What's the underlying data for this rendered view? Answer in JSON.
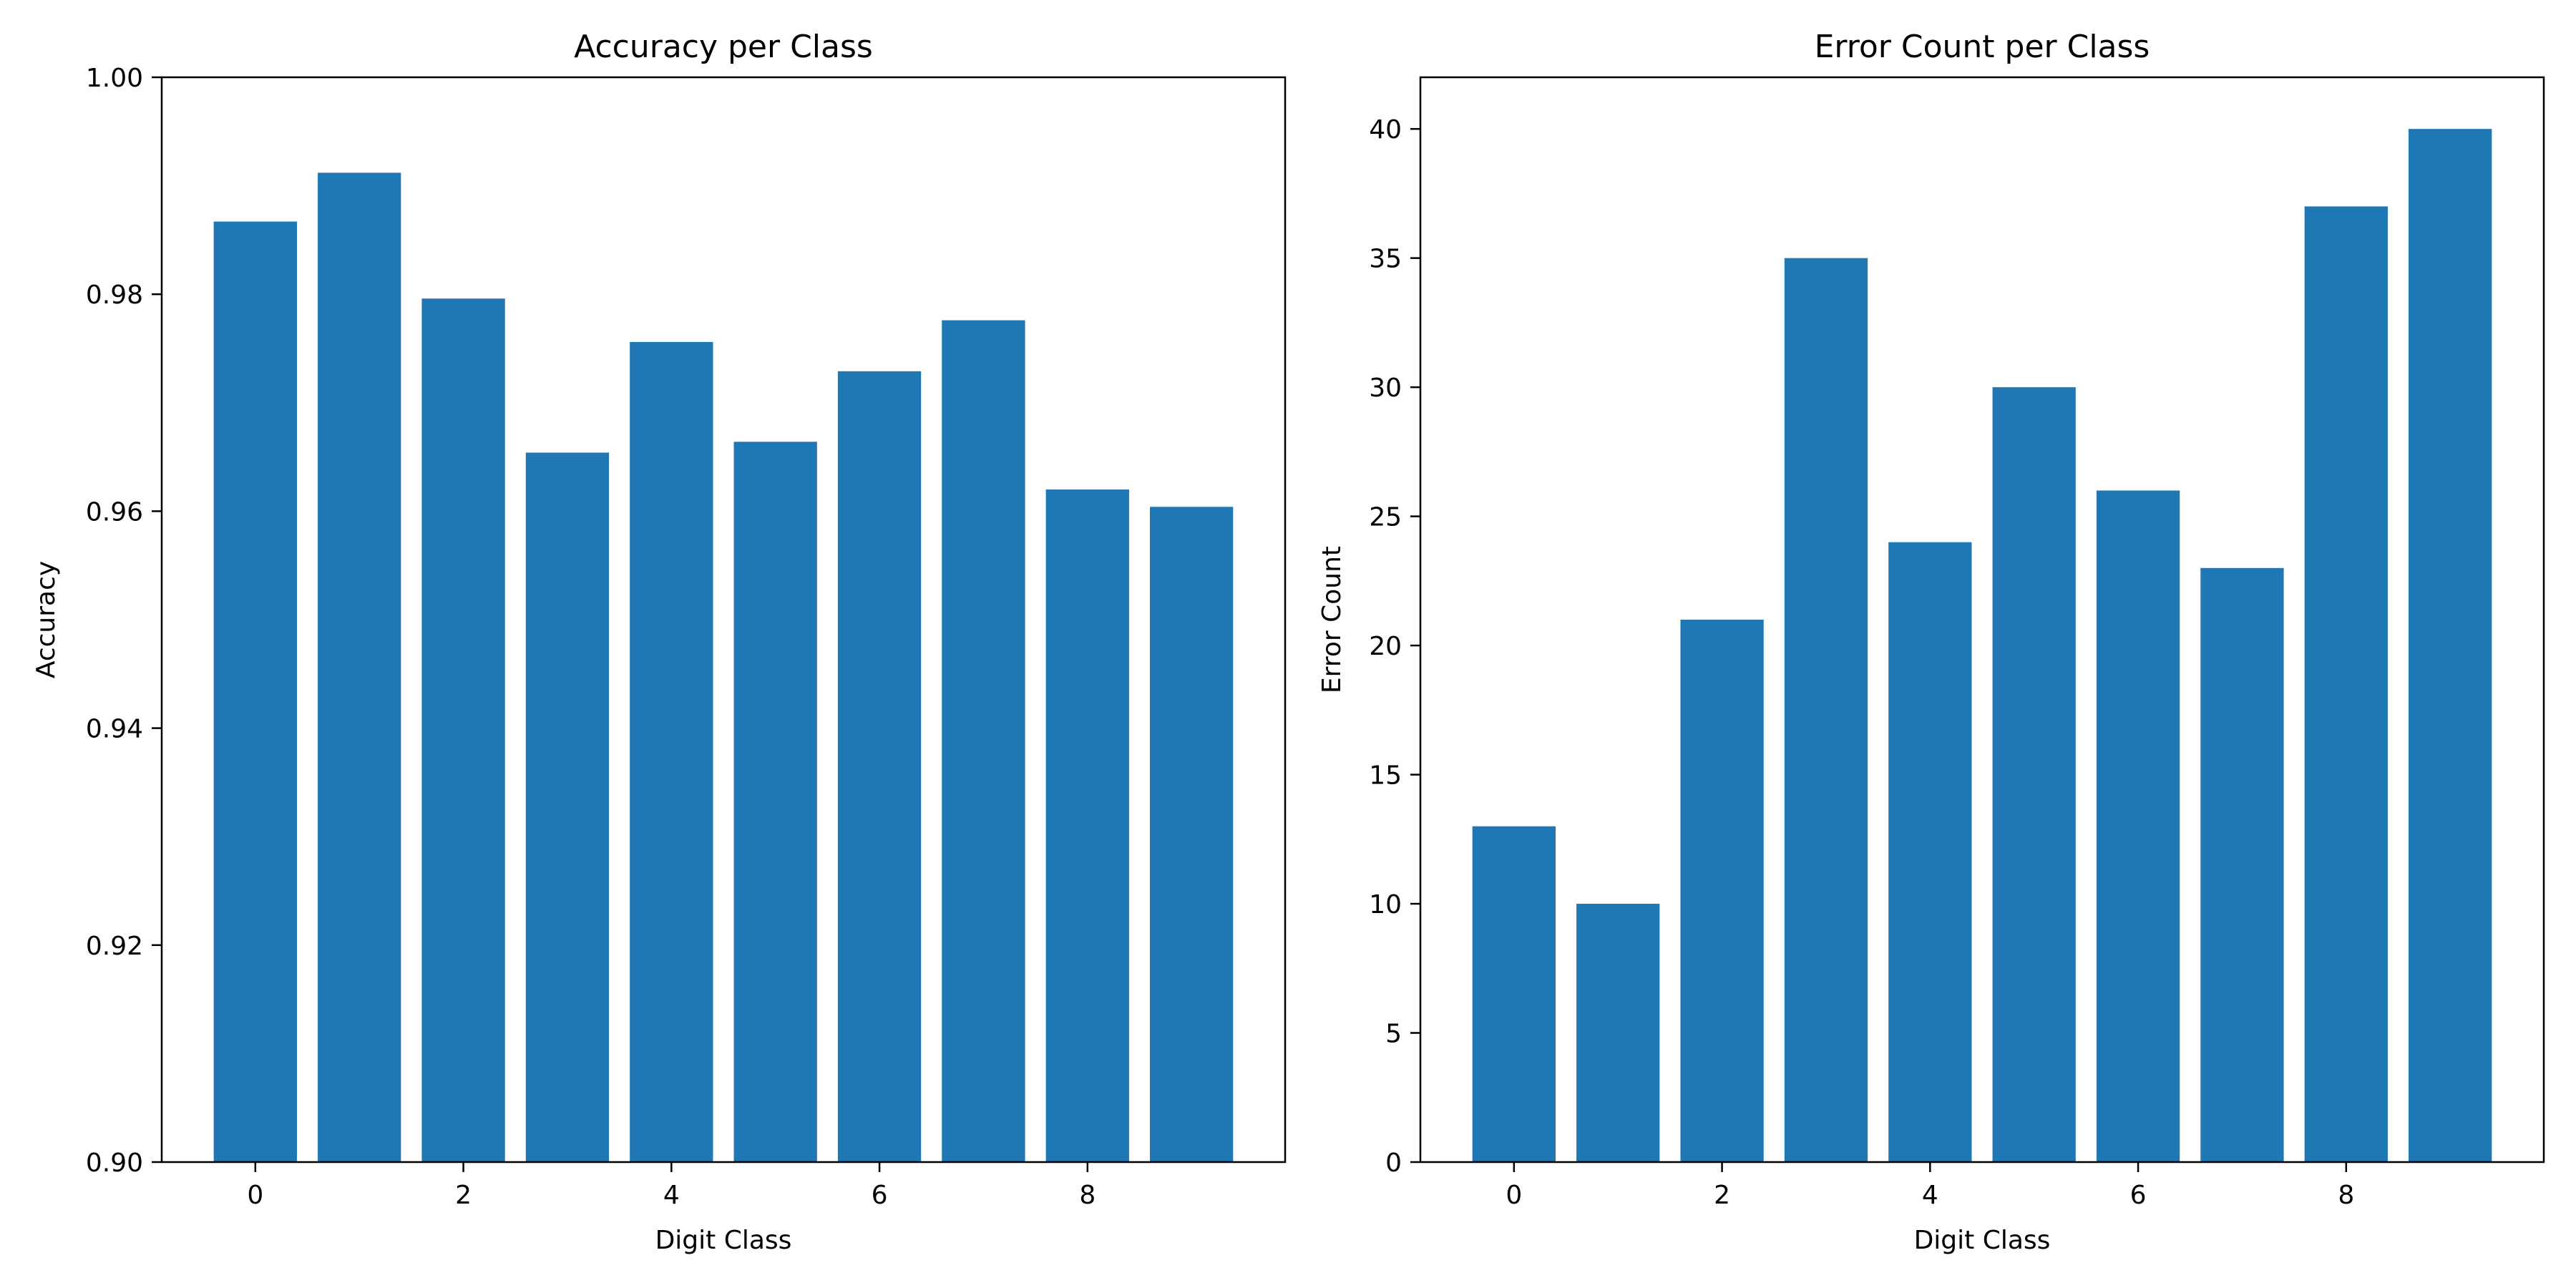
{
  "chart_data": [
    {
      "type": "bar",
      "title": "Accuracy per Class",
      "xlabel": "Digit Class",
      "ylabel": "Accuracy",
      "categories": [
        0,
        1,
        2,
        3,
        4,
        5,
        6,
        7,
        8,
        9
      ],
      "values": [
        0.9867,
        0.9912,
        0.9796,
        0.9654,
        0.9756,
        0.9664,
        0.9729,
        0.9776,
        0.962,
        0.9604
      ],
      "ylim": [
        0.9,
        1.0
      ],
      "xlim": [
        -0.9,
        9.9
      ],
      "yticks": [
        0.9,
        0.92,
        0.94,
        0.96,
        0.98,
        1.0
      ],
      "ytick_labels": [
        "0.90",
        "0.92",
        "0.94",
        "0.96",
        "0.98",
        "1.00"
      ],
      "xticks": [
        0,
        2,
        4,
        6,
        8
      ],
      "xtick_labels": [
        "0",
        "2",
        "4",
        "6",
        "8"
      ],
      "color": "#1f77b4",
      "grid": false
    },
    {
      "type": "bar",
      "title": "Error Count per Class",
      "xlabel": "Digit Class",
      "ylabel": "Error Count",
      "categories": [
        0,
        1,
        2,
        3,
        4,
        5,
        6,
        7,
        8,
        9
      ],
      "values": [
        13,
        10,
        21,
        35,
        24,
        30,
        26,
        23,
        37,
        40
      ],
      "ylim": [
        0,
        42
      ],
      "xlim": [
        -0.9,
        9.9
      ],
      "yticks": [
        0,
        5,
        10,
        15,
        20,
        25,
        30,
        35,
        40
      ],
      "ytick_labels": [
        "0",
        "5",
        "10",
        "15",
        "20",
        "25",
        "30",
        "35",
        "40"
      ],
      "xticks": [
        0,
        2,
        4,
        6,
        8
      ],
      "xtick_labels": [
        "0",
        "2",
        "4",
        "6",
        "8"
      ],
      "color": "#1f77b4",
      "grid": false
    }
  ]
}
